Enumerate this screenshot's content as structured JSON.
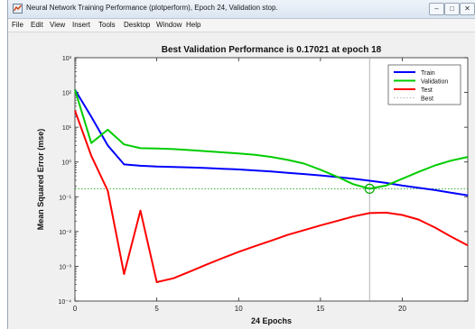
{
  "window": {
    "title": "Neural Network Training Performance (plotperform), Epoch 24, Validation stop.",
    "controls": {
      "minimize": "–",
      "maximize": "□",
      "close": "✕"
    },
    "icon": "matlab-figure-icon"
  },
  "menubar": {
    "items": [
      "File",
      "Edit",
      "View",
      "Insert",
      "Tools",
      "Desktop",
      "Window",
      "Help"
    ]
  },
  "chart_data": {
    "type": "line",
    "title": "Best Validation Performance is 0.17021 at epoch 18",
    "xlabel": "24 Epochs",
    "ylabel": "Mean Squared Error  (mse)",
    "xlim": [
      0,
      24
    ],
    "ylim": [
      0.0001,
      1000
    ],
    "yscale": "log",
    "xticks": [
      0,
      5,
      10,
      15,
      20
    ],
    "yticks": [
      {
        "value": 0.0001,
        "label": "10⁻⁴"
      },
      {
        "value": 0.001,
        "label": "10⁻³"
      },
      {
        "value": 0.01,
        "label": "10⁻²"
      },
      {
        "value": 0.1,
        "label": "10⁻¹"
      },
      {
        "value": 1,
        "label": "10⁰"
      },
      {
        "value": 10,
        "label": "10¹"
      },
      {
        "value": 100,
        "label": "10²"
      },
      {
        "value": 1000,
        "label": "10³"
      }
    ],
    "legend_position": "top-right",
    "series": [
      {
        "name": "Train",
        "color": "#0000ff",
        "x": [
          0,
          1,
          2,
          3,
          4,
          5,
          6,
          7,
          8,
          9,
          10,
          11,
          12,
          13,
          14,
          15,
          16,
          17,
          18,
          19,
          20,
          21,
          22,
          23,
          24
        ],
        "y": [
          120,
          20,
          3,
          0.85,
          0.78,
          0.74,
          0.72,
          0.7,
          0.67,
          0.64,
          0.61,
          0.57,
          0.53,
          0.49,
          0.45,
          0.41,
          0.37,
          0.33,
          0.29,
          0.25,
          0.21,
          0.18,
          0.155,
          0.13,
          0.11
        ]
      },
      {
        "name": "Validation",
        "color": "#00cc00",
        "x": [
          0,
          1,
          2,
          3,
          4,
          5,
          6,
          7,
          8,
          9,
          10,
          11,
          12,
          13,
          14,
          15,
          16,
          17,
          18,
          19,
          20,
          21,
          22,
          23,
          24
        ],
        "y": [
          120,
          3.5,
          8.5,
          3.2,
          2.5,
          2.45,
          2.35,
          2.2,
          2.05,
          1.9,
          1.75,
          1.6,
          1.4,
          1.15,
          0.9,
          0.6,
          0.38,
          0.23,
          0.17021,
          0.21,
          0.33,
          0.52,
          0.8,
          1.1,
          1.4
        ]
      },
      {
        "name": "Test",
        "color": "#ff0000",
        "x": [
          0,
          1,
          2,
          3,
          4,
          5,
          6,
          7,
          8,
          9,
          10,
          11,
          12,
          13,
          14,
          15,
          16,
          17,
          18,
          19,
          20,
          21,
          22,
          23,
          24
        ],
        "y": [
          30,
          1.5,
          0.15,
          0.0006,
          0.04,
          0.00035,
          0.00045,
          0.0007,
          0.0011,
          0.0017,
          0.0026,
          0.0038,
          0.0055,
          0.008,
          0.011,
          0.015,
          0.02,
          0.027,
          0.034,
          0.035,
          0.03,
          0.022,
          0.013,
          0.007,
          0.004
        ]
      }
    ],
    "best": {
      "name": "Best",
      "epoch": 18,
      "value": 0.17021,
      "color": "#00aa00",
      "line_color": "#a0a0a0"
    },
    "goal_line_color": "#009900"
  }
}
